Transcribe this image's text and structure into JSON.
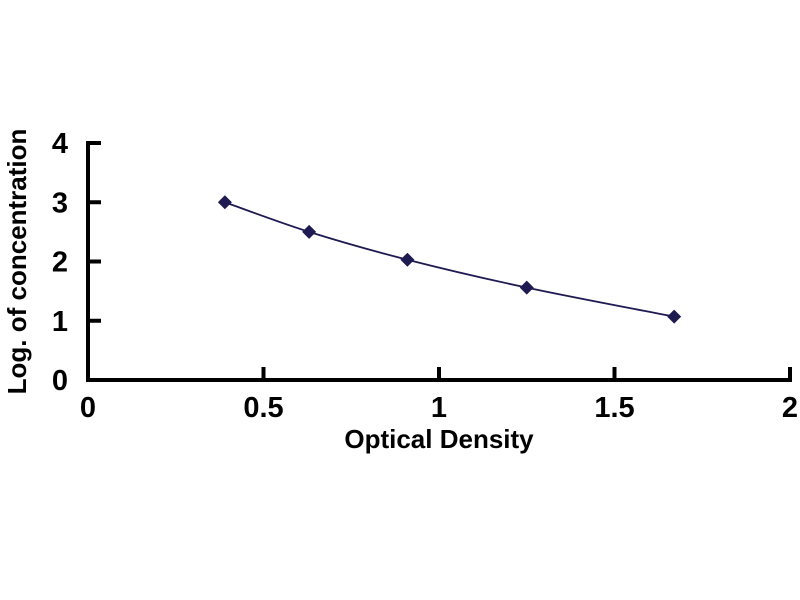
{
  "chart_data": {
    "type": "line",
    "title": "",
    "xlabel": "Optical Density",
    "ylabel": "Log. of concentration",
    "x": [
      0.39,
      0.63,
      0.91,
      1.25,
      1.67
    ],
    "y": [
      3.0,
      2.5,
      2.03,
      1.56,
      1.07
    ],
    "xlim": [
      0,
      2
    ],
    "ylim": [
      0,
      4
    ],
    "xticks": {
      "values": [
        0,
        0.5,
        1,
        1.5,
        2
      ],
      "labels": [
        "0",
        "0.5",
        "1",
        "1.5",
        "2"
      ]
    },
    "yticks": {
      "values": [
        0,
        1,
        2,
        3,
        4
      ],
      "labels": [
        "0",
        "1",
        "2",
        "3",
        "4"
      ]
    },
    "grid": false,
    "legend": null,
    "marker": "diamond",
    "marker_size": 7,
    "line_smooth": true,
    "colors": {
      "line": "#1e1a52",
      "marker": "#1e1a52",
      "axis": "#000000",
      "text": "#000000",
      "background": "#ffffff"
    }
  }
}
